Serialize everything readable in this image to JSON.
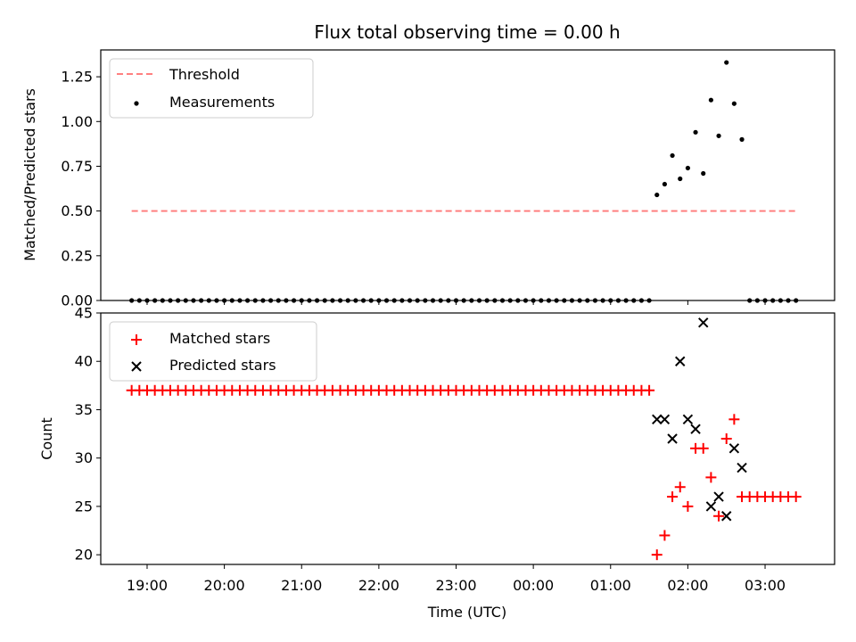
{
  "chart_data": [
    {
      "type": "scatter",
      "title": "Flux total observing time = 0.00 h",
      "ylabel": "Matched/Predicted stars",
      "xlabel": "",
      "ylim": [
        0,
        1.4
      ],
      "yticks": [
        0.0,
        0.25,
        0.5,
        0.75,
        1.0,
        1.25
      ],
      "ytick_labels": [
        "0.00",
        "0.25",
        "0.50",
        "0.75",
        "1.00",
        "1.25"
      ],
      "legend": {
        "placement": "top-left",
        "entries": [
          "Threshold",
          "Measurements"
        ]
      },
      "threshold": {
        "name": "Threshold",
        "y": 0.5,
        "x_start": "18:48",
        "x_end": "03:24",
        "color": "#ff8080",
        "style": "dashed"
      },
      "series": [
        {
          "name": "Measurements",
          "color": "#000000",
          "marker": "dot",
          "points": [
            {
              "x": "18:48",
              "y": 0
            },
            {
              "x": "18:54",
              "y": 0
            },
            {
              "x": "19:00",
              "y": 0
            },
            {
              "x": "19:06",
              "y": 0
            },
            {
              "x": "19:12",
              "y": 0
            },
            {
              "x": "19:18",
              "y": 0
            },
            {
              "x": "19:24",
              "y": 0
            },
            {
              "x": "19:30",
              "y": 0
            },
            {
              "x": "19:36",
              "y": 0
            },
            {
              "x": "19:42",
              "y": 0
            },
            {
              "x": "19:48",
              "y": 0
            },
            {
              "x": "19:54",
              "y": 0
            },
            {
              "x": "20:00",
              "y": 0
            },
            {
              "x": "20:06",
              "y": 0
            },
            {
              "x": "20:12",
              "y": 0
            },
            {
              "x": "20:18",
              "y": 0
            },
            {
              "x": "20:24",
              "y": 0
            },
            {
              "x": "20:30",
              "y": 0
            },
            {
              "x": "20:36",
              "y": 0
            },
            {
              "x": "20:42",
              "y": 0
            },
            {
              "x": "20:48",
              "y": 0
            },
            {
              "x": "20:54",
              "y": 0
            },
            {
              "x": "21:00",
              "y": 0
            },
            {
              "x": "21:06",
              "y": 0
            },
            {
              "x": "21:12",
              "y": 0
            },
            {
              "x": "21:18",
              "y": 0
            },
            {
              "x": "21:24",
              "y": 0
            },
            {
              "x": "21:30",
              "y": 0
            },
            {
              "x": "21:36",
              "y": 0
            },
            {
              "x": "21:42",
              "y": 0
            },
            {
              "x": "21:48",
              "y": 0
            },
            {
              "x": "21:54",
              "y": 0
            },
            {
              "x": "22:00",
              "y": 0
            },
            {
              "x": "22:06",
              "y": 0
            },
            {
              "x": "22:12",
              "y": 0
            },
            {
              "x": "22:18",
              "y": 0
            },
            {
              "x": "22:24",
              "y": 0
            },
            {
              "x": "22:30",
              "y": 0
            },
            {
              "x": "22:36",
              "y": 0
            },
            {
              "x": "22:42",
              "y": 0
            },
            {
              "x": "22:48",
              "y": 0
            },
            {
              "x": "22:54",
              "y": 0
            },
            {
              "x": "23:00",
              "y": 0
            },
            {
              "x": "23:06",
              "y": 0
            },
            {
              "x": "23:12",
              "y": 0
            },
            {
              "x": "23:18",
              "y": 0
            },
            {
              "x": "23:24",
              "y": 0
            },
            {
              "x": "23:30",
              "y": 0
            },
            {
              "x": "23:36",
              "y": 0
            },
            {
              "x": "23:42",
              "y": 0
            },
            {
              "x": "23:48",
              "y": 0
            },
            {
              "x": "23:54",
              "y": 0
            },
            {
              "x": "00:00",
              "y": 0
            },
            {
              "x": "00:06",
              "y": 0
            },
            {
              "x": "00:12",
              "y": 0
            },
            {
              "x": "00:18",
              "y": 0
            },
            {
              "x": "00:24",
              "y": 0
            },
            {
              "x": "00:30",
              "y": 0
            },
            {
              "x": "00:36",
              "y": 0
            },
            {
              "x": "00:42",
              "y": 0
            },
            {
              "x": "00:48",
              "y": 0
            },
            {
              "x": "00:54",
              "y": 0
            },
            {
              "x": "01:00",
              "y": 0
            },
            {
              "x": "01:06",
              "y": 0
            },
            {
              "x": "01:12",
              "y": 0
            },
            {
              "x": "01:18",
              "y": 0
            },
            {
              "x": "01:24",
              "y": 0
            },
            {
              "x": "01:30",
              "y": 0
            },
            {
              "x": "01:36",
              "y": 0.59
            },
            {
              "x": "01:42",
              "y": 0.65
            },
            {
              "x": "01:48",
              "y": 0.81
            },
            {
              "x": "01:54",
              "y": 0.68
            },
            {
              "x": "02:00",
              "y": 0.74
            },
            {
              "x": "02:06",
              "y": 0.94
            },
            {
              "x": "02:12",
              "y": 0.71
            },
            {
              "x": "02:18",
              "y": 1.12
            },
            {
              "x": "02:24",
              "y": 0.92
            },
            {
              "x": "02:30",
              "y": 1.33
            },
            {
              "x": "02:36",
              "y": 1.1
            },
            {
              "x": "02:42",
              "y": 0.9
            },
            {
              "x": "02:48",
              "y": 0
            },
            {
              "x": "02:54",
              "y": 0
            },
            {
              "x": "03:00",
              "y": 0
            },
            {
              "x": "03:06",
              "y": 0
            },
            {
              "x": "03:12",
              "y": 0
            },
            {
              "x": "03:18",
              "y": 0
            },
            {
              "x": "03:24",
              "y": 0
            }
          ]
        }
      ]
    },
    {
      "type": "scatter",
      "title": "",
      "ylabel": "Count",
      "xlabel": "Time (UTC)",
      "ylim": [
        19,
        45
      ],
      "yticks": [
        20,
        25,
        30,
        35,
        40,
        45
      ],
      "ytick_labels": [
        "20",
        "25",
        "30",
        "35",
        "40",
        "45"
      ],
      "xlim": [
        "18:24",
        "03:54"
      ],
      "xticks": [
        "19:00",
        "20:00",
        "21:00",
        "22:00",
        "23:00",
        "00:00",
        "01:00",
        "02:00",
        "03:00"
      ],
      "legend": {
        "placement": "top-left",
        "entries": [
          "Matched stars",
          "Predicted stars"
        ]
      },
      "series": [
        {
          "name": "Matched stars",
          "color": "#ff0000",
          "marker": "plus",
          "points": [
            {
              "x": "18:48",
              "y": 37
            },
            {
              "x": "18:54",
              "y": 37
            },
            {
              "x": "19:00",
              "y": 37
            },
            {
              "x": "19:06",
              "y": 37
            },
            {
              "x": "19:12",
              "y": 37
            },
            {
              "x": "19:18",
              "y": 37
            },
            {
              "x": "19:24",
              "y": 37
            },
            {
              "x": "19:30",
              "y": 37
            },
            {
              "x": "19:36",
              "y": 37
            },
            {
              "x": "19:42",
              "y": 37
            },
            {
              "x": "19:48",
              "y": 37
            },
            {
              "x": "19:54",
              "y": 37
            },
            {
              "x": "20:00",
              "y": 37
            },
            {
              "x": "20:06",
              "y": 37
            },
            {
              "x": "20:12",
              "y": 37
            },
            {
              "x": "20:18",
              "y": 37
            },
            {
              "x": "20:24",
              "y": 37
            },
            {
              "x": "20:30",
              "y": 37
            },
            {
              "x": "20:36",
              "y": 37
            },
            {
              "x": "20:42",
              "y": 37
            },
            {
              "x": "20:48",
              "y": 37
            },
            {
              "x": "20:54",
              "y": 37
            },
            {
              "x": "21:00",
              "y": 37
            },
            {
              "x": "21:06",
              "y": 37
            },
            {
              "x": "21:12",
              "y": 37
            },
            {
              "x": "21:18",
              "y": 37
            },
            {
              "x": "21:24",
              "y": 37
            },
            {
              "x": "21:30",
              "y": 37
            },
            {
              "x": "21:36",
              "y": 37
            },
            {
              "x": "21:42",
              "y": 37
            },
            {
              "x": "21:48",
              "y": 37
            },
            {
              "x": "21:54",
              "y": 37
            },
            {
              "x": "22:00",
              "y": 37
            },
            {
              "x": "22:06",
              "y": 37
            },
            {
              "x": "22:12",
              "y": 37
            },
            {
              "x": "22:18",
              "y": 37
            },
            {
              "x": "22:24",
              "y": 37
            },
            {
              "x": "22:30",
              "y": 37
            },
            {
              "x": "22:36",
              "y": 37
            },
            {
              "x": "22:42",
              "y": 37
            },
            {
              "x": "22:48",
              "y": 37
            },
            {
              "x": "22:54",
              "y": 37
            },
            {
              "x": "23:00",
              "y": 37
            },
            {
              "x": "23:06",
              "y": 37
            },
            {
              "x": "23:12",
              "y": 37
            },
            {
              "x": "23:18",
              "y": 37
            },
            {
              "x": "23:24",
              "y": 37
            },
            {
              "x": "23:30",
              "y": 37
            },
            {
              "x": "23:36",
              "y": 37
            },
            {
              "x": "23:42",
              "y": 37
            },
            {
              "x": "23:48",
              "y": 37
            },
            {
              "x": "23:54",
              "y": 37
            },
            {
              "x": "00:00",
              "y": 37
            },
            {
              "x": "00:06",
              "y": 37
            },
            {
              "x": "00:12",
              "y": 37
            },
            {
              "x": "00:18",
              "y": 37
            },
            {
              "x": "00:24",
              "y": 37
            },
            {
              "x": "00:30",
              "y": 37
            },
            {
              "x": "00:36",
              "y": 37
            },
            {
              "x": "00:42",
              "y": 37
            },
            {
              "x": "00:48",
              "y": 37
            },
            {
              "x": "00:54",
              "y": 37
            },
            {
              "x": "01:00",
              "y": 37
            },
            {
              "x": "01:06",
              "y": 37
            },
            {
              "x": "01:12",
              "y": 37
            },
            {
              "x": "01:18",
              "y": 37
            },
            {
              "x": "01:24",
              "y": 37
            },
            {
              "x": "01:30",
              "y": 37
            },
            {
              "x": "01:36",
              "y": 20
            },
            {
              "x": "01:42",
              "y": 22
            },
            {
              "x": "01:48",
              "y": 26
            },
            {
              "x": "01:54",
              "y": 27
            },
            {
              "x": "02:00",
              "y": 25
            },
            {
              "x": "02:06",
              "y": 31
            },
            {
              "x": "02:12",
              "y": 31
            },
            {
              "x": "02:18",
              "y": 28
            },
            {
              "x": "02:24",
              "y": 24
            },
            {
              "x": "02:30",
              "y": 32
            },
            {
              "x": "02:36",
              "y": 34
            },
            {
              "x": "02:42",
              "y": 26
            },
            {
              "x": "02:48",
              "y": 26
            },
            {
              "x": "02:54",
              "y": 26
            },
            {
              "x": "03:00",
              "y": 26
            },
            {
              "x": "03:06",
              "y": 26
            },
            {
              "x": "03:12",
              "y": 26
            },
            {
              "x": "03:18",
              "y": 26
            },
            {
              "x": "03:24",
              "y": 26
            }
          ]
        },
        {
          "name": "Predicted stars",
          "color": "#000000",
          "marker": "x",
          "points": [
            {
              "x": "01:36",
              "y": 34
            },
            {
              "x": "01:42",
              "y": 34
            },
            {
              "x": "01:48",
              "y": 32
            },
            {
              "x": "01:54",
              "y": 40
            },
            {
              "x": "02:00",
              "y": 34
            },
            {
              "x": "02:06",
              "y": 33
            },
            {
              "x": "02:12",
              "y": 44
            },
            {
              "x": "02:18",
              "y": 25
            },
            {
              "x": "02:24",
              "y": 26
            },
            {
              "x": "02:30",
              "y": 24
            },
            {
              "x": "02:36",
              "y": 31
            },
            {
              "x": "02:42",
              "y": 29
            }
          ]
        }
      ]
    }
  ]
}
